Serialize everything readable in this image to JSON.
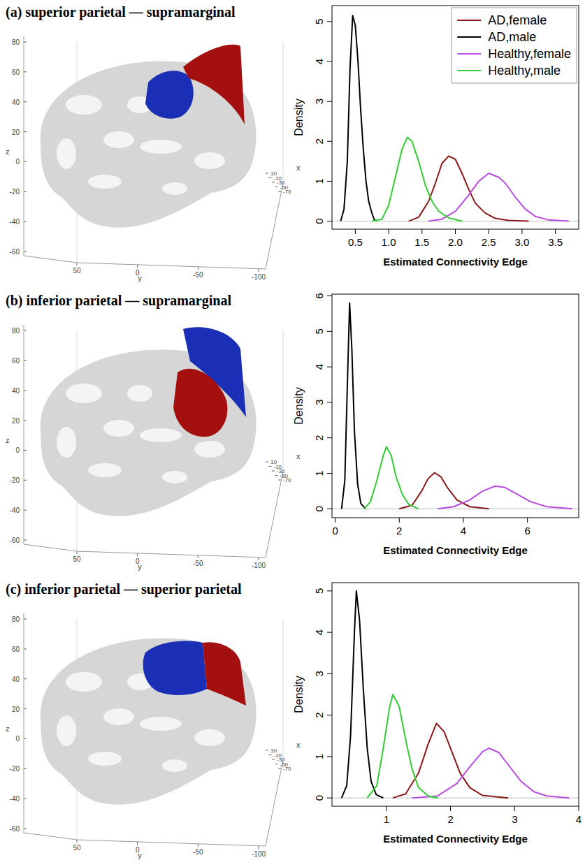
{
  "chart_data": [
    {
      "type": "line",
      "title": "(a) superior parietal — supramarginal",
      "x_label": "Estimated Connectivity Edge",
      "y_label": "Density",
      "xlim": [
        0.15,
        3.85
      ],
      "xticks": [
        {
          "value": 0.5,
          "label": "0.5"
        },
        {
          "value": 1,
          "label": "1.0"
        },
        {
          "value": 1.5,
          "label": "1.5"
        },
        {
          "value": 2,
          "label": "2.0"
        },
        {
          "value": 2.5,
          "label": "2.5"
        },
        {
          "value": 3,
          "label": "3.0"
        },
        {
          "value": 3.5,
          "label": "3.5"
        }
      ],
      "ylim": [
        -0.2,
        5.4
      ],
      "yticks": [
        0,
        1,
        2,
        3,
        4,
        5
      ],
      "legend": "top-right",
      "series": [
        {
          "name": "AD,female",
          "color": "#8b1a1a",
          "x": [
            1.3,
            1.45,
            1.6,
            1.7,
            1.8,
            1.9,
            2.0,
            2.1,
            2.2,
            2.3,
            2.45,
            2.6,
            2.8,
            3.1
          ],
          "values": [
            0,
            0.1,
            0.5,
            0.95,
            1.45,
            1.63,
            1.55,
            1.2,
            0.8,
            0.45,
            0.2,
            0.07,
            0.02,
            0
          ]
        },
        {
          "name": "AD,male",
          "color": "#000000",
          "x": [
            0.28,
            0.33,
            0.38,
            0.42,
            0.46,
            0.5,
            0.54,
            0.58,
            0.62,
            0.66,
            0.7,
            0.74,
            0.78,
            0.82
          ],
          "values": [
            0,
            0.3,
            1.5,
            3.8,
            5.15,
            4.9,
            4.0,
            2.8,
            1.8,
            1.0,
            0.5,
            0.25,
            0.05,
            0
          ]
        },
        {
          "name": "Healthy,female",
          "color": "#b84de0",
          "x": [
            1.6,
            1.8,
            2.0,
            2.2,
            2.35,
            2.5,
            2.65,
            2.75,
            2.9,
            3.05,
            3.2,
            3.4,
            3.7
          ],
          "values": [
            0,
            0.05,
            0.25,
            0.65,
            1.0,
            1.2,
            1.1,
            0.95,
            0.6,
            0.3,
            0.12,
            0.03,
            0
          ]
        },
        {
          "name": "Healthy,male",
          "color": "#33cc33",
          "x": [
            0.75,
            0.9,
            1.0,
            1.1,
            1.2,
            1.28,
            1.35,
            1.45,
            1.55,
            1.65,
            1.75,
            1.9,
            2.1
          ],
          "values": [
            0,
            0.05,
            0.4,
            1.1,
            1.8,
            2.1,
            2.0,
            1.5,
            0.9,
            0.5,
            0.25,
            0.08,
            0
          ]
        }
      ]
    },
    {
      "type": "line",
      "title": "(b) inferior parietal — supramarginal",
      "x_label": "Estimated Connectivity Edge",
      "y_label": "Density",
      "xlim": [
        -0.1,
        7.6
      ],
      "xticks": [
        0,
        2,
        4,
        6
      ],
      "ylim": [
        -0.25,
        6.05
      ],
      "yticks": [
        0,
        1,
        2,
        3,
        4,
        5,
        6
      ],
      "series": [
        {
          "color": "#8b1a1a",
          "x": [
            2.0,
            2.4,
            2.7,
            2.9,
            3.1,
            3.3,
            3.5,
            3.8,
            4.2,
            4.8
          ],
          "values": [
            0,
            0.1,
            0.5,
            0.85,
            1.02,
            0.9,
            0.6,
            0.25,
            0.06,
            0
          ]
        },
        {
          "color": "#000000",
          "x": [
            0.2,
            0.3,
            0.38,
            0.45,
            0.52,
            0.6,
            0.7,
            0.8,
            0.95
          ],
          "values": [
            0,
            0.8,
            3.5,
            5.8,
            4.5,
            2.2,
            0.7,
            0.15,
            0
          ]
        },
        {
          "color": "#b84de0",
          "x": [
            3.2,
            3.7,
            4.2,
            4.6,
            5.0,
            5.3,
            5.7,
            6.1,
            6.6,
            7.4
          ],
          "values": [
            0,
            0.06,
            0.25,
            0.5,
            0.64,
            0.6,
            0.4,
            0.2,
            0.06,
            0
          ]
        },
        {
          "color": "#33cc33",
          "x": [
            0.9,
            1.1,
            1.3,
            1.5,
            1.6,
            1.75,
            1.9,
            2.1,
            2.3,
            2.6
          ],
          "values": [
            0,
            0.2,
            0.8,
            1.5,
            1.75,
            1.5,
            0.9,
            0.4,
            0.12,
            0
          ]
        }
      ]
    },
    {
      "type": "line",
      "title": "(c) inferior parietal — superior parietal",
      "x_label": "Estimated Connectivity Edge",
      "y_label": "Density",
      "xlim": [
        0.15,
        4.0
      ],
      "xticks": [
        1,
        2,
        3,
        4
      ],
      "ylim": [
        -0.2,
        5.2
      ],
      "yticks": [
        0,
        1,
        2,
        3,
        4,
        5
      ],
      "series": [
        {
          "color": "#8b1a1a",
          "x": [
            1.1,
            1.3,
            1.5,
            1.65,
            1.78,
            1.9,
            2.0,
            2.15,
            2.3,
            2.5,
            2.9
          ],
          "values": [
            0,
            0.1,
            0.6,
            1.3,
            1.8,
            1.6,
            1.2,
            0.6,
            0.25,
            0.06,
            0
          ]
        },
        {
          "color": "#000000",
          "x": [
            0.3,
            0.38,
            0.44,
            0.5,
            0.53,
            0.58,
            0.64,
            0.7,
            0.76,
            0.84,
            0.95
          ],
          "values": [
            0,
            0.3,
            1.5,
            4.0,
            5.0,
            4.3,
            2.6,
            1.2,
            0.4,
            0.08,
            0
          ]
        },
        {
          "color": "#b84de0",
          "x": [
            1.4,
            1.8,
            2.1,
            2.3,
            2.5,
            2.6,
            2.75,
            2.9,
            3.1,
            3.3,
            3.5,
            3.85
          ],
          "values": [
            0,
            0.05,
            0.35,
            0.75,
            1.12,
            1.2,
            1.1,
            0.8,
            0.4,
            0.15,
            0.05,
            0
          ]
        },
        {
          "color": "#33cc33",
          "x": [
            0.7,
            0.85,
            0.95,
            1.05,
            1.1,
            1.2,
            1.3,
            1.4,
            1.5,
            1.65,
            1.8
          ],
          "values": [
            0,
            0.3,
            1.2,
            2.2,
            2.5,
            2.2,
            1.4,
            0.7,
            0.25,
            0.05,
            0
          ]
        }
      ]
    }
  ],
  "brains": [
    {
      "z_label": "z",
      "z_ticks": [
        80,
        60,
        40,
        20,
        0,
        -20,
        -40,
        -60
      ],
      "y_label": "y",
      "y_ticks": [
        50,
        0,
        -50,
        -100
      ],
      "x_label": "x",
      "x_ticks": [
        10,
        -10,
        -30,
        -50,
        -70
      ]
    },
    {
      "z_label": "z",
      "z_ticks": [
        80,
        60,
        40,
        20,
        0,
        -20,
        -40,
        -60
      ],
      "y_label": "y",
      "y_ticks": [
        50,
        0,
        -50,
        -100
      ],
      "x_label": "x",
      "x_ticks": [
        10,
        -10,
        -30,
        -50,
        -70
      ]
    },
    {
      "z_label": "z",
      "z_ticks": [
        80,
        60,
        40,
        20,
        0,
        -20,
        -40,
        -60
      ],
      "y_label": "y",
      "y_ticks": [
        50,
        0,
        -50,
        -100
      ],
      "x_label": "x",
      "x_ticks": [
        10,
        -10,
        -30,
        -50,
        -70
      ]
    }
  ]
}
